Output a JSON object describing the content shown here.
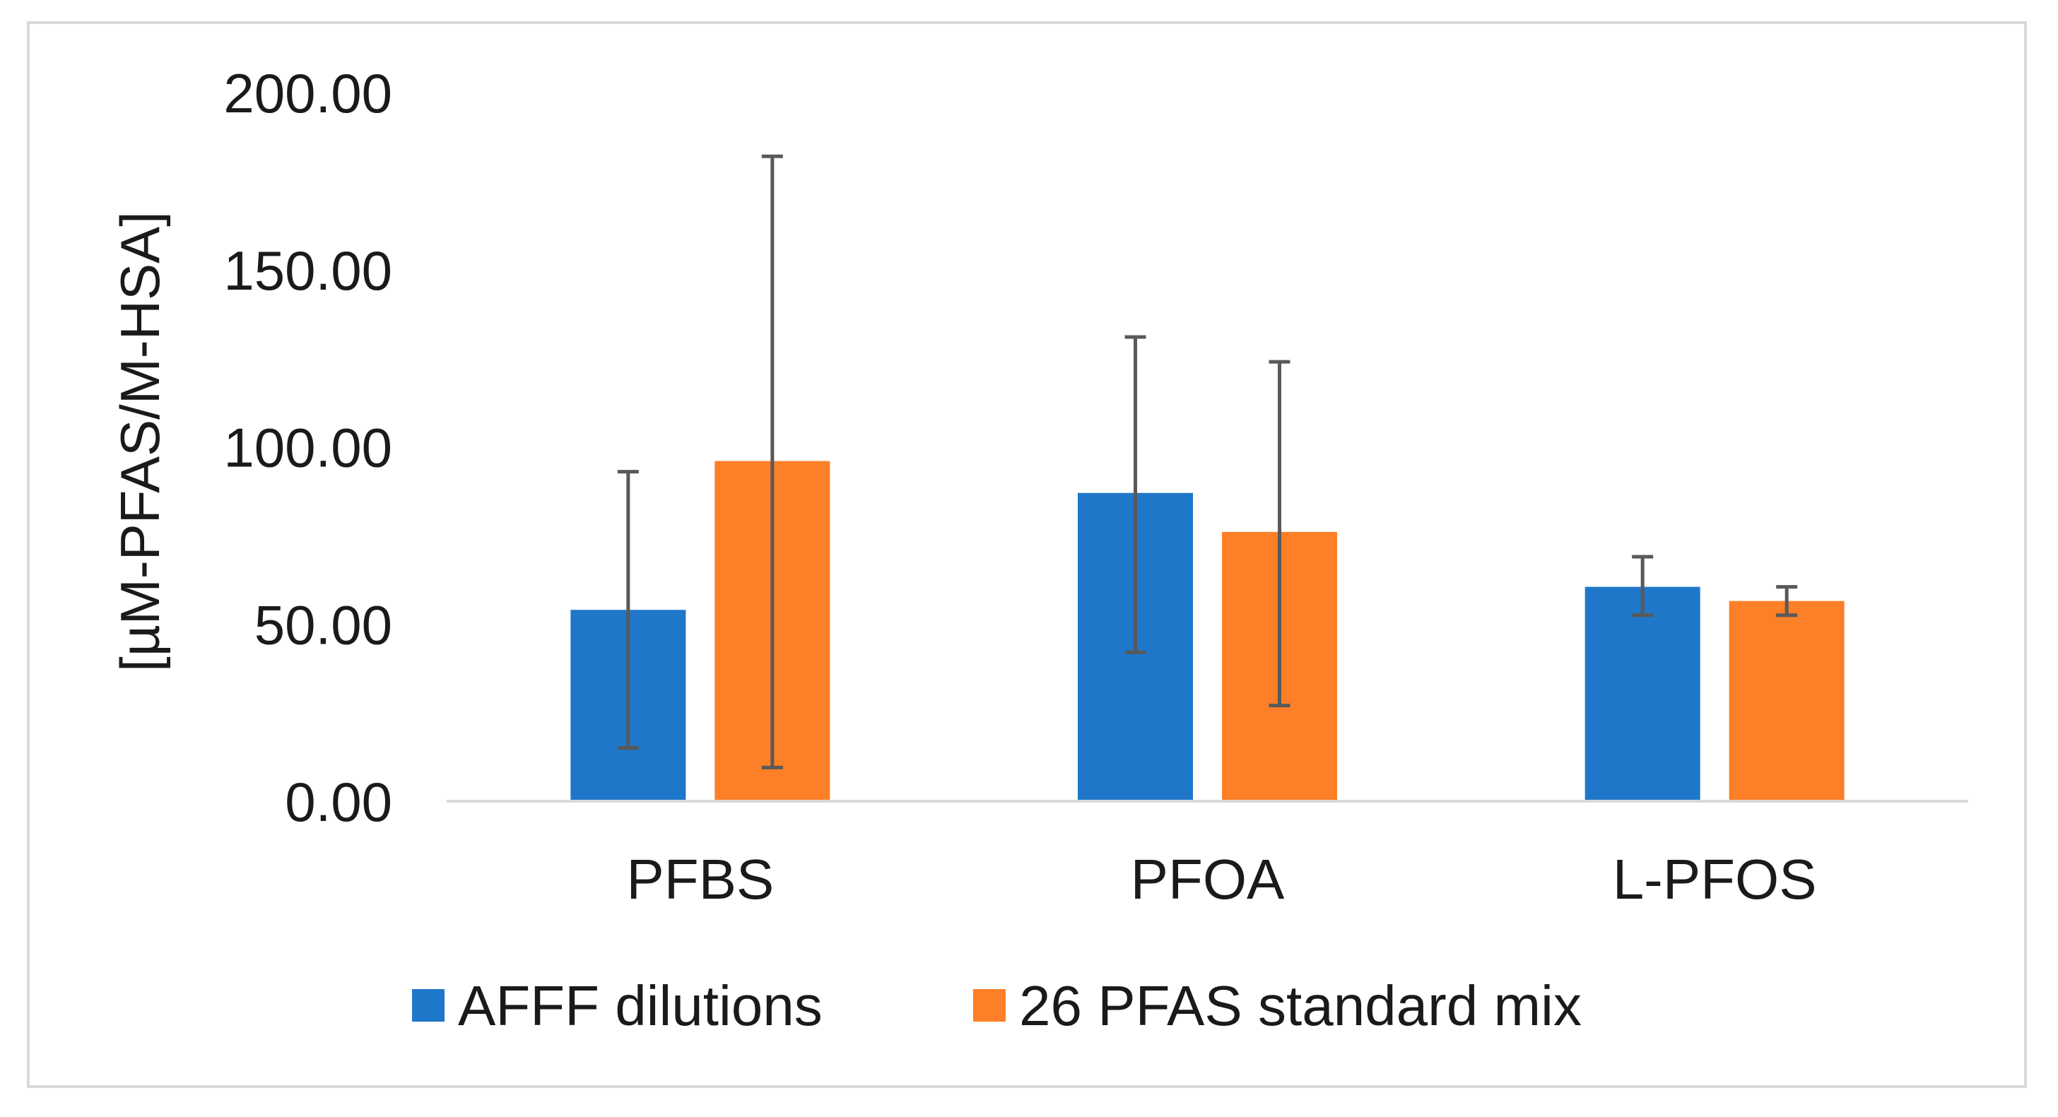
{
  "chart_data": {
    "type": "bar",
    "title": "",
    "xlabel": "",
    "ylabel": "[µM-PFAS/M-HSA]",
    "ylim": [
      0,
      200
    ],
    "yticks": [
      0,
      50,
      100,
      150,
      200
    ],
    "ytick_labels": [
      "0.00",
      "50.00",
      "100.00",
      "150.00",
      "200.00"
    ],
    "categories": [
      "PFBS",
      "PFOA",
      "L-PFOS"
    ],
    "series": [
      {
        "name": "AFFF dilutions",
        "color": "#1f77c9",
        "values": [
          54,
          87,
          60.5
        ],
        "err_low": [
          15,
          42,
          52.5
        ],
        "err_high": [
          93,
          131,
          69
        ]
      },
      {
        "name": "26 PFAS standard mix",
        "color": "#fd7f27",
        "values": [
          96,
          76,
          56.5
        ],
        "err_low": [
          9.5,
          27,
          52.5
        ],
        "err_high": [
          182,
          124,
          60.5
        ]
      }
    ],
    "grid": false,
    "legend_position": "bottom",
    "errorbar_color": "#595959",
    "axis_color": "#d9d9d9"
  }
}
